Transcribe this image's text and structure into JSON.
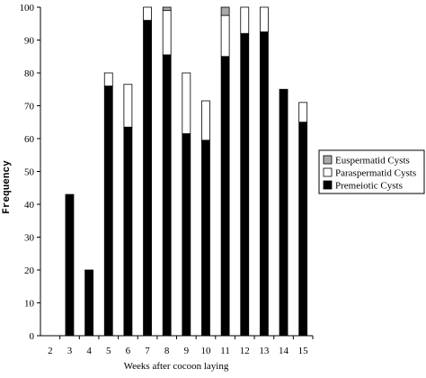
{
  "chart_data": {
    "type": "bar",
    "stacked": true,
    "categories": [
      "2",
      "3",
      "4",
      "5",
      "6",
      "7",
      "8",
      "9",
      "10",
      "11",
      "12",
      "13",
      "14",
      "15"
    ],
    "series": [
      {
        "name": "Premeiotic Cysts",
        "color": "#000000",
        "values": [
          0,
          43,
          20,
          76,
          63.5,
          96,
          85.5,
          61.5,
          59.5,
          85,
          92,
          92.5,
          75,
          65
        ]
      },
      {
        "name": "Paraspermatid Cysts",
        "color": "#ffffff",
        "values": [
          0,
          0,
          0,
          4,
          13,
          4,
          13.5,
          18.5,
          12,
          12.5,
          8,
          7.5,
          0,
          6
        ]
      },
      {
        "name": "Euspermatid Cysts",
        "color": "#a9a9a9",
        "values": [
          0,
          0,
          0,
          0,
          0,
          0,
          1,
          0,
          0,
          2.5,
          0,
          0,
          0,
          0
        ]
      }
    ],
    "legend_order": [
      "Euspermatid Cysts",
      "Paraspermatid Cysts",
      "Premeiotic Cysts"
    ],
    "xlabel": "Weeks after cocoon laying",
    "ylabel": "Frequency",
    "ylim": [
      0,
      100
    ],
    "yticks": [
      "0",
      "10",
      "20",
      "30",
      "40",
      "50",
      "60",
      "70",
      "80",
      "90",
      "100"
    ],
    "grid": false,
    "legend_position": "right"
  }
}
